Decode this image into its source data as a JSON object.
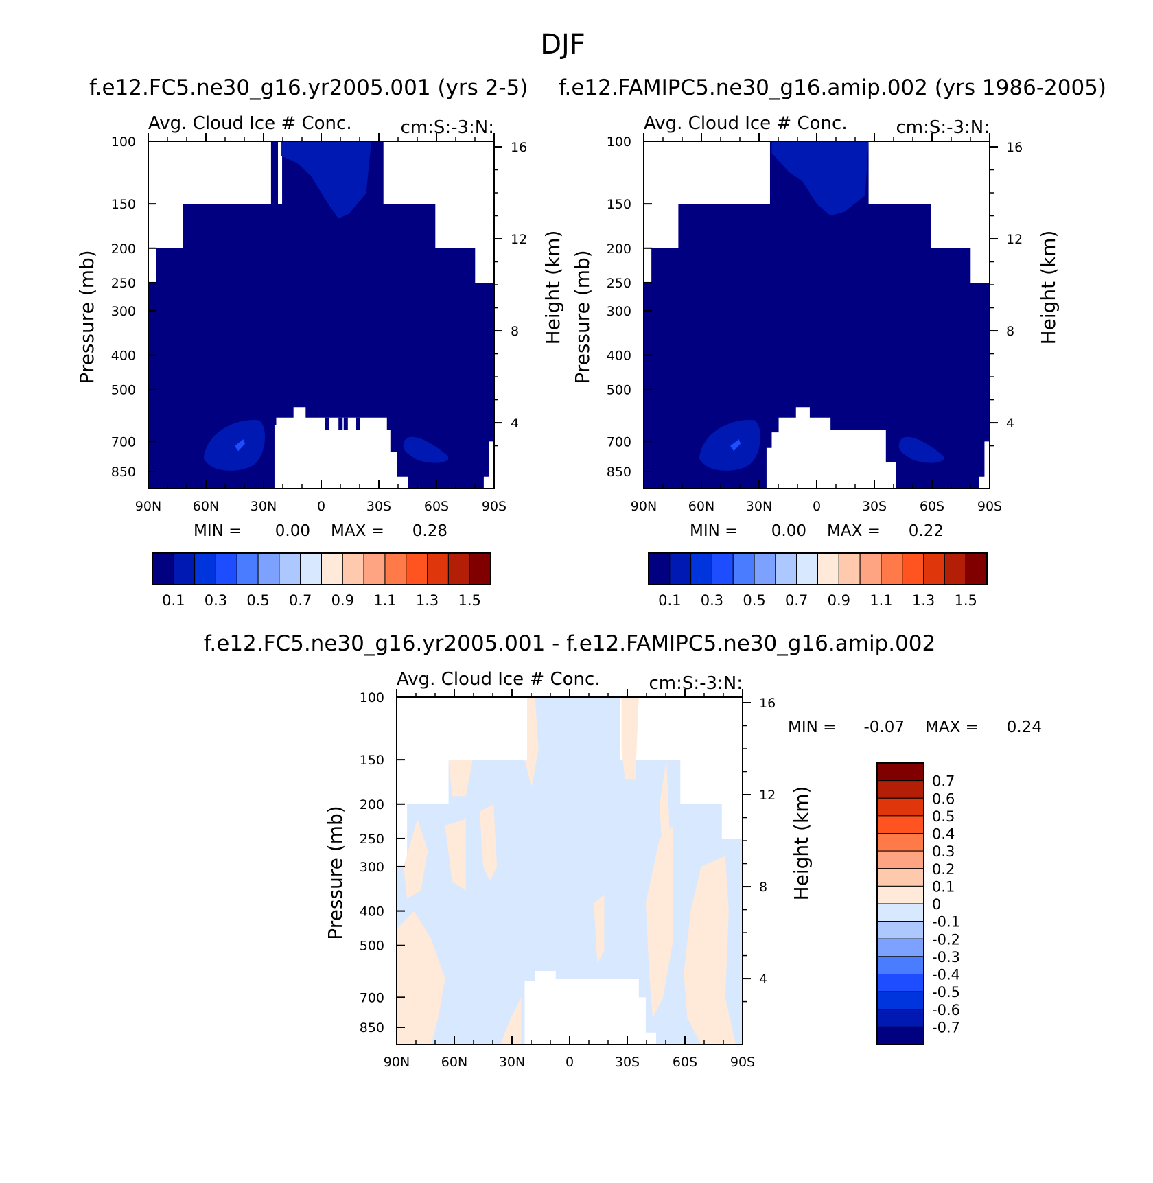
{
  "figure": {
    "title": "DJF"
  },
  "colors": {
    "absolute_scale": [
      "#000080",
      "#0019b2",
      "#0034dc",
      "#1e4cff",
      "#4a7cff",
      "#7ca1ff",
      "#adc7ff",
      "#d8e8ff",
      "#ffe9d8",
      "#ffc9ae",
      "#ffa483",
      "#ff7a49",
      "#ff541f",
      "#e0360c",
      "#b21e06",
      "#800000"
    ],
    "difference_scale": [
      "#000080",
      "#0019b2",
      "#0034dc",
      "#1e4cff",
      "#4a7cff",
      "#7ca1ff",
      "#adc7ff",
      "#d8e8ff",
      "#ffe9d8",
      "#ffc9ae",
      "#ffa483",
      "#ff7a49",
      "#ff541f",
      "#e0360c",
      "#b21e06",
      "#800000"
    ],
    "missing": "#ffffff"
  },
  "chart_data": [
    {
      "type": "heatmap",
      "panel": "top-left",
      "title": "f.e12.FC5.ne30_g16.yr2005.001 (yrs 2-5)",
      "subtitle_left": "Avg. Cloud Ice # Conc.",
      "subtitle_right": "cm:S:-3:N:",
      "xlabel": "",
      "ylabel": "Pressure (mb)",
      "y2label": "Height (km)",
      "x_ticks": [
        "90N",
        "60N",
        "30N",
        "0",
        "30S",
        "60S",
        "90S"
      ],
      "y_ticks": [
        "100",
        "150",
        "200",
        "250",
        "300",
        "400",
        "500",
        "700",
        "850"
      ],
      "y2_ticks": [
        "16",
        "12",
        "8",
        "4"
      ],
      "min_label": "MIN =",
      "min_value": "0.00",
      "max_label": "MAX =",
      "max_value": "0.28",
      "colorbar_labels": [
        "0.1",
        "0.3",
        "0.5",
        "0.7",
        "0.9",
        "1.1",
        "1.3",
        "1.5"
      ],
      "field": "mostly 0.0-0.1 throughout troposphere; 0.1-0.2 patches near 700 mb at 60N-30N, 45S-60S and near tropical tropopause"
    },
    {
      "type": "heatmap",
      "panel": "top-right",
      "title": "f.e12.FAMIPC5.ne30_g16.amip.002 (yrs 1986-2005)",
      "subtitle_left": "Avg. Cloud Ice # Conc.",
      "subtitle_right": "cm:S:-3:N:",
      "xlabel": "",
      "ylabel": "Pressure (mb)",
      "y2label": "Height (km)",
      "x_ticks": [
        "90N",
        "60N",
        "30N",
        "0",
        "30S",
        "60S",
        "90S"
      ],
      "y_ticks": [
        "100",
        "150",
        "200",
        "250",
        "300",
        "400",
        "500",
        "700",
        "850"
      ],
      "y2_ticks": [
        "16",
        "12",
        "8",
        "4"
      ],
      "min_label": "MIN =",
      "min_value": "0.00",
      "max_label": "MAX =",
      "max_value": "0.22",
      "colorbar_labels": [
        "0.1",
        "0.3",
        "0.5",
        "0.7",
        "0.9",
        "1.1",
        "1.3",
        "1.5"
      ],
      "field": "mostly 0.0-0.1; 0.1-0.2 patches near 700 mb at 60N-30N, 45S-60S and near tropical tropopause"
    },
    {
      "type": "heatmap",
      "panel": "bottom",
      "title": "f.e12.FC5.ne30_g16.yr2005.001 - f.e12.FAMIPC5.ne30_g16.amip.002",
      "subtitle_left": "Avg. Cloud Ice # Conc.",
      "subtitle_right": "cm:S:-3:N:",
      "xlabel": "",
      "ylabel": "Pressure (mb)",
      "y2label": "Height (km)",
      "x_ticks": [
        "90N",
        "60N",
        "30N",
        "0",
        "30S",
        "60S",
        "90S"
      ],
      "y_ticks": [
        "100",
        "150",
        "200",
        "250",
        "300",
        "400",
        "500",
        "700",
        "850"
      ],
      "y2_ticks": [
        "16",
        "12",
        "8",
        "4"
      ],
      "min_label": "MIN =",
      "min_value": "-0.07",
      "max_label": "MAX =",
      "max_value": "0.24",
      "colorbar_labels": [
        "0.7",
        "0.6",
        "0.5",
        "0.4",
        "0.3",
        "0.2",
        "0.1",
        "0",
        "-0.1",
        "-0.2",
        "-0.3",
        "-0.4",
        "-0.5",
        "-0.6",
        "-0.7"
      ],
      "field": "mostly -0.1-0 with scattered 0-0.1 positive streaks in both hemispheres"
    }
  ]
}
